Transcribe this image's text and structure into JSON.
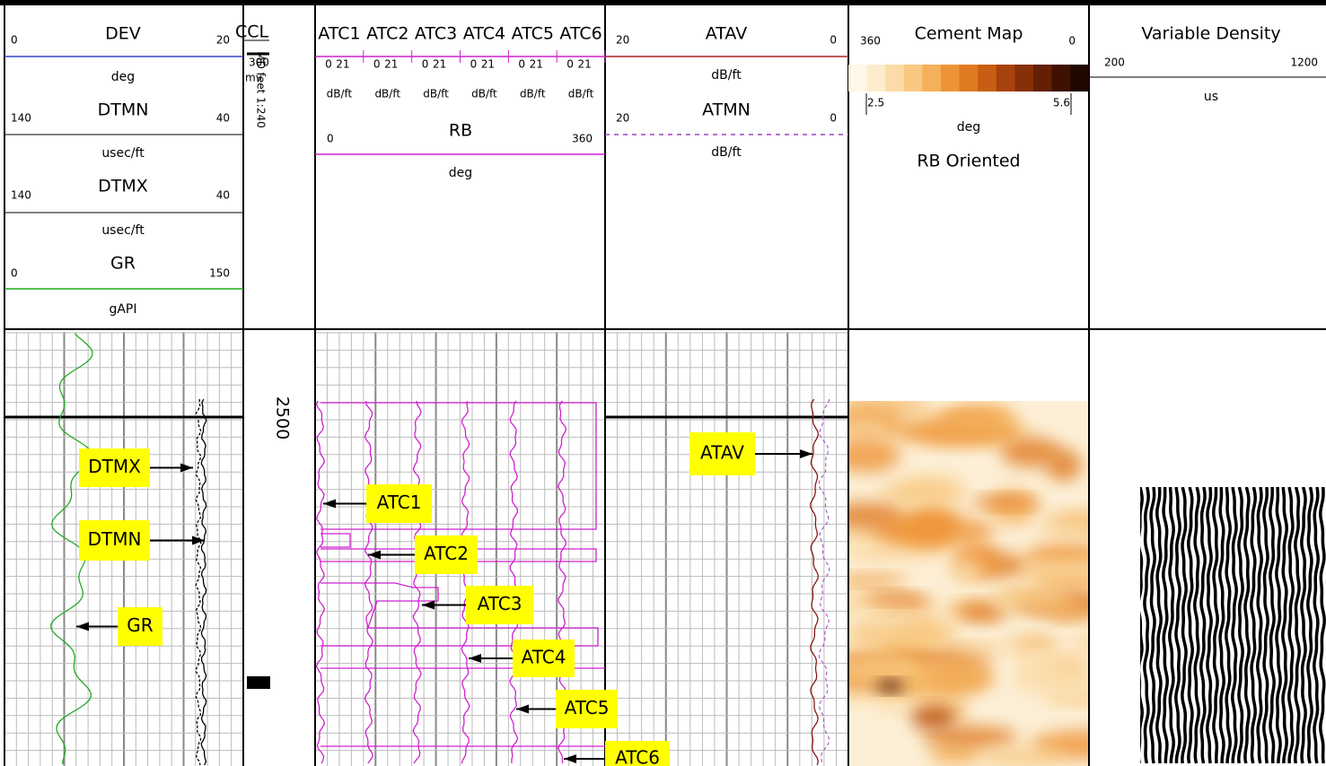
{
  "tracks": [
    {
      "curves": [
        {
          "name": "DEV",
          "left": 0,
          "right": 20,
          "unit": "deg"
        },
        {
          "name": "DTMN",
          "left": 140,
          "right": 40,
          "unit": "usec/ft"
        },
        {
          "name": "DTMX",
          "left": 140,
          "right": 40,
          "unit": "usec/ft"
        },
        {
          "name": "GR",
          "left": 0,
          "right": 150,
          "unit": "gAPI"
        }
      ]
    },
    {
      "curves": [
        {
          "name": "CCL",
          "left": 300,
          "unit": "mv"
        }
      ],
      "depth_label": "MD feet 1:240",
      "depth": 2500
    },
    {
      "curves": [
        {
          "name": "ATC1",
          "left": 0,
          "right": 21,
          "unit": "dB/ft"
        },
        {
          "name": "ATC2",
          "left": 0,
          "right": 21,
          "unit": "dB/ft"
        },
        {
          "name": "ATC3",
          "left": 0,
          "right": 21,
          "unit": "dB/ft"
        },
        {
          "name": "ATC4",
          "left": 0,
          "right": 21,
          "unit": "dB/ft"
        },
        {
          "name": "ATC5",
          "left": 0,
          "right": 21,
          "unit": "dB/ft"
        },
        {
          "name": "ATC6",
          "left": 0,
          "right": 21,
          "unit": "dB/ft"
        },
        {
          "name": "RB",
          "left": 0,
          "right": 360,
          "unit": "deg"
        }
      ]
    },
    {
      "curves": [
        {
          "name": "ATAV",
          "left": 20,
          "right": 0,
          "unit": "dB/ft"
        },
        {
          "name": "ATMN",
          "left": 20,
          "right": 0,
          "unit": "dB/ft"
        }
      ]
    },
    {
      "title": "Cement Map",
      "left": 360,
      "right": 0,
      "scale_min": 2.5,
      "scale_max": 5.6,
      "unit": "deg",
      "note": "RB Oriented"
    },
    {
      "title": "Variable Density",
      "left": 200,
      "right": 1200,
      "unit": "us"
    }
  ],
  "callouts": [
    "DTMX",
    "DTMN",
    "GR",
    "ATC1",
    "ATC2",
    "ATC3",
    "ATC4",
    "ATC5",
    "ATC6",
    "ATAV"
  ]
}
